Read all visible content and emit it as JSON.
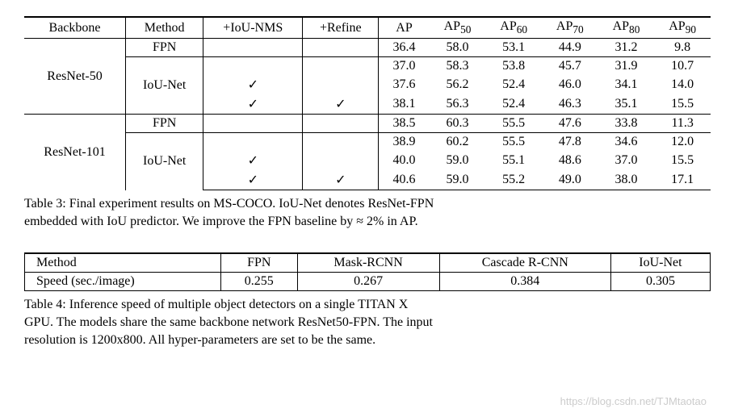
{
  "table3": {
    "headers": [
      "Backbone",
      "Method",
      "+IoU-NMS",
      "+Refine",
      "AP",
      "AP",
      "AP",
      "AP",
      "AP",
      "AP"
    ],
    "header_subs": [
      "",
      "",
      "",
      "",
      "",
      "50",
      "60",
      "70",
      "80",
      "90"
    ],
    "backbones": [
      "ResNet-50",
      "ResNet-101"
    ],
    "methods": [
      "FPN",
      "IoU-Net"
    ],
    "check": "✓",
    "r50": {
      "fpn": {
        "nms": "",
        "ref": "",
        "ap": "36.4",
        "ap50": "58.0",
        "ap60": "53.1",
        "ap70": "44.9",
        "ap80": "31.2",
        "ap90": "9.8"
      },
      "iou1": {
        "nms": "",
        "ref": "",
        "ap": "37.0",
        "ap50": "58.3",
        "ap60": "53.8",
        "ap70": "45.7",
        "ap80": "31.9",
        "ap90": "10.7"
      },
      "iou2": {
        "nms": "✓",
        "ref": "",
        "ap": "37.6",
        "ap50": "56.2",
        "ap60": "52.4",
        "ap70": "46.0",
        "ap80": "34.1",
        "ap90": "14.0"
      },
      "iou3": {
        "nms": "✓",
        "ref": "✓",
        "ap": "38.1",
        "ap50": "56.3",
        "ap60": "52.4",
        "ap70": "46.3",
        "ap80": "35.1",
        "ap90": "15.5"
      }
    },
    "r101": {
      "fpn": {
        "nms": "",
        "ref": "",
        "ap": "38.5",
        "ap50": "60.3",
        "ap60": "55.5",
        "ap70": "47.6",
        "ap80": "33.8",
        "ap90": "11.3"
      },
      "iou1": {
        "nms": "",
        "ref": "",
        "ap": "38.9",
        "ap50": "60.2",
        "ap60": "55.5",
        "ap70": "47.8",
        "ap80": "34.6",
        "ap90": "12.0"
      },
      "iou2": {
        "nms": "✓",
        "ref": "",
        "ap": "40.0",
        "ap50": "59.0",
        "ap60": "55.1",
        "ap70": "48.6",
        "ap80": "37.0",
        "ap90": "15.5"
      },
      "iou3": {
        "nms": "✓",
        "ref": "✓",
        "ap": "40.6",
        "ap50": "59.0",
        "ap60": "55.2",
        "ap70": "49.0",
        "ap80": "38.0",
        "ap90": "17.1"
      }
    },
    "caption_a": "Table 3: Final experiment results on MS-COCO. IoU-Net denotes ResNet-FPN",
    "caption_b": "embedded with IoU predictor. We improve the FPN baseline by ≈ 2% in AP."
  },
  "table4": {
    "headers": [
      "Method",
      "FPN",
      "Mask-RCNN",
      "Cascade R-CNN",
      "IoU-Net"
    ],
    "row_label": "Speed (sec./image)",
    "values": [
      "0.255",
      "0.267",
      "0.384",
      "0.305"
    ],
    "caption_a": "Table 4: Inference speed of multiple object detectors on a single TITAN X",
    "caption_b": "GPU. The models share the same backbone network ResNet50-FPN. The input",
    "caption_c": "resolution is 1200x800. All hyper-parameters are set to be the same."
  },
  "watermark": "https://blog.csdn.net/TJMtaotao"
}
